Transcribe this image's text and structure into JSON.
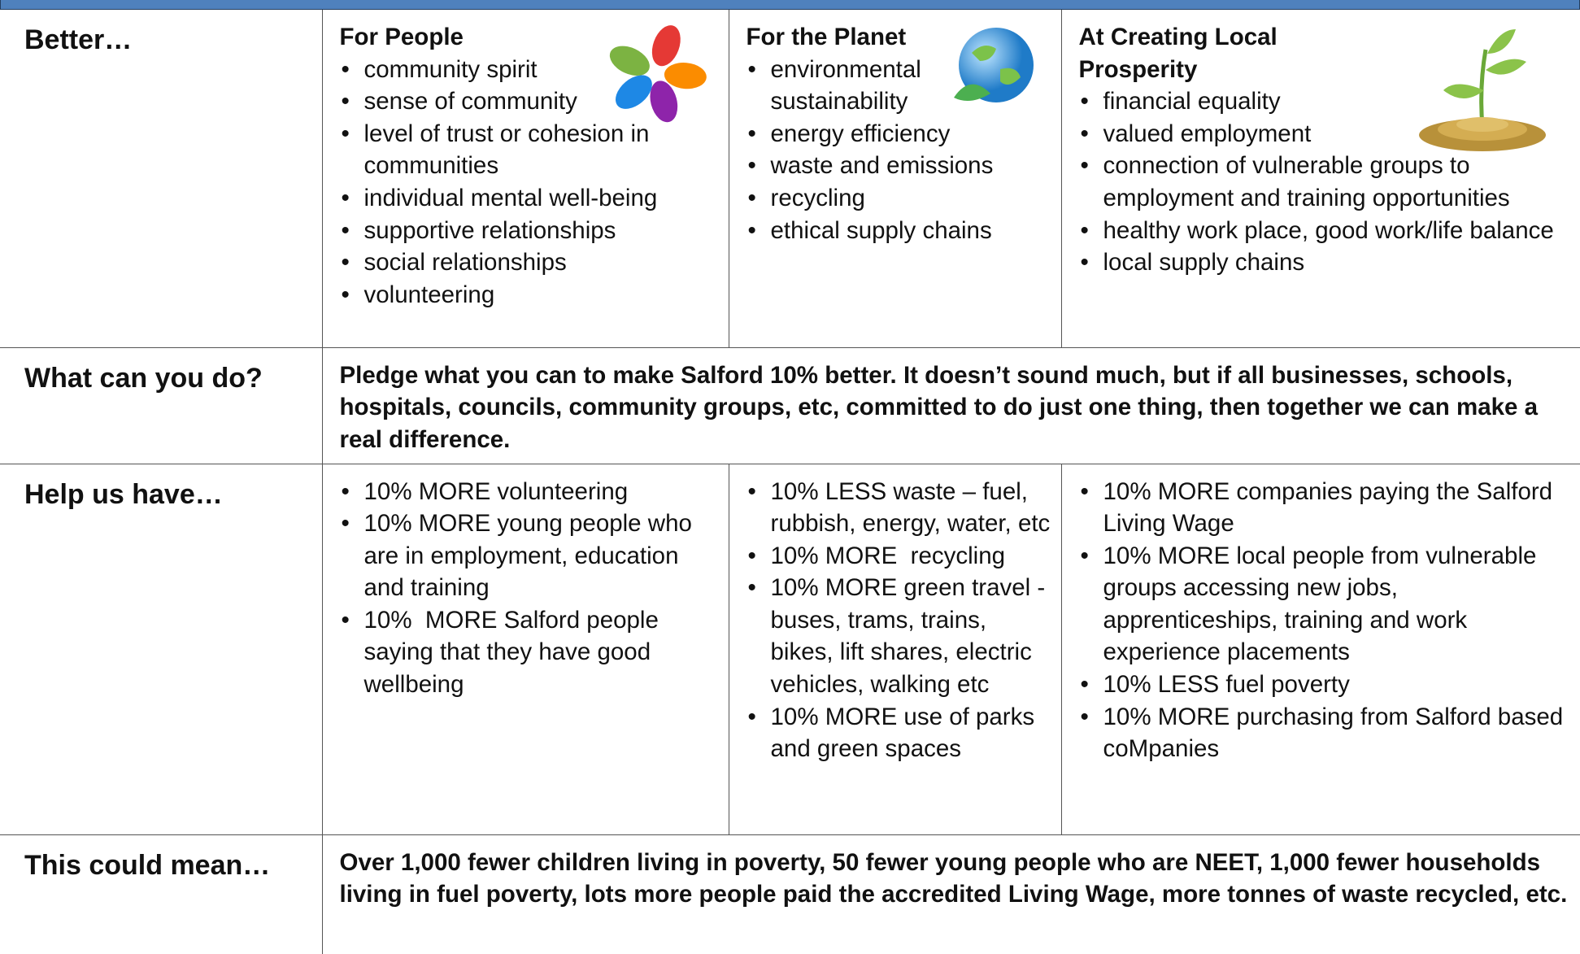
{
  "rows": [
    {
      "label": "Better…",
      "cells": [
        {
          "heading": "For People",
          "items": [
            "community spirit",
            "sense of community",
            "level of trust or cohesion in communities",
            "individual mental well-being",
            "supportive relationships",
            "social relationships",
            "volunteering"
          ]
        },
        {
          "heading": "For the Planet",
          "items": [
            "environmental sustainability",
            "energy efficiency",
            "waste and emissions",
            "recycling",
            "ethical supply chains"
          ]
        },
        {
          "heading": "At Creating Local Prosperity",
          "items": [
            "financial equality",
            "valued employment",
            "connection of vulnerable groups to employment and training opportunities",
            "healthy work place, good work/life balance",
            "local supply chains"
          ]
        }
      ]
    },
    {
      "label": "What can you do?",
      "text": "Pledge what you can to make Salford 10% better. It doesn’t sound much, but if all businesses, schools, hospitals, councils, community groups, etc, committed to do just one thing, then together we can make a real difference."
    },
    {
      "label": "Help us have…",
      "cells": [
        {
          "items": [
            "10% MORE volunteering",
            "10% MORE young people who are in employment, education and training",
            "10%  MORE Salford people saying that they have good wellbeing"
          ]
        },
        {
          "items": [
            "10% LESS waste – fuel, rubbish, energy, water, etc",
            "10% MORE  recycling",
            "10% MORE green travel - buses, trams, trains, bikes, lift shares, electric vehicles, walking etc",
            "10% MORE use of parks and green spaces"
          ]
        },
        {
          "items": [
            "10% MORE companies paying the Salford Living Wage",
            "10% MORE local people from vulnerable groups accessing new jobs, apprenticeships, training and work experience placements",
            "10% LESS fuel poverty",
            "10% MORE purchasing from Salford based coMpanies"
          ]
        }
      ]
    },
    {
      "label": "This could mean…",
      "text": "Over 1,000 fewer children living in poverty, 50 fewer young people who are NEET, 1,000 fewer households living in fuel poverty, lots more people paid the accredited Living Wage, more tonnes of waste recycled, etc."
    }
  ]
}
